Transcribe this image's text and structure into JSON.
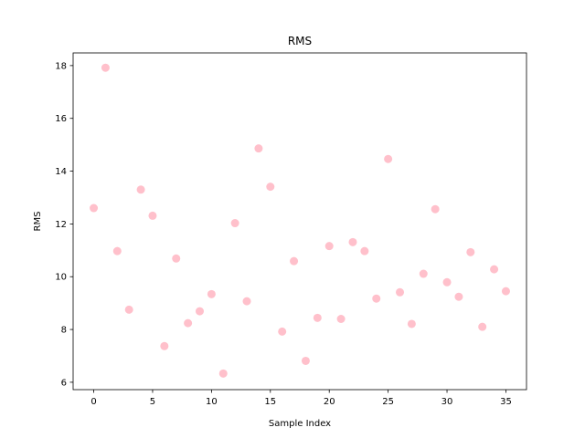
{
  "chart_data": {
    "type": "scatter",
    "title": "RMS",
    "xlabel": "Sample Index",
    "ylabel": "RMS",
    "xlim": [
      -1.75,
      36.75
    ],
    "ylim": [
      5.72,
      18.48
    ],
    "xticks": [
      0,
      5,
      10,
      15,
      20,
      25,
      30,
      35
    ],
    "yticks": [
      6,
      8,
      10,
      12,
      14,
      16,
      18
    ],
    "grid": false,
    "legend": "none",
    "marker_color": "#ffc0cb",
    "points": [
      [
        0,
        12.6
      ],
      [
        1,
        17.92
      ],
      [
        2,
        10.97
      ],
      [
        3,
        8.75
      ],
      [
        4,
        13.3
      ],
      [
        5,
        12.31
      ],
      [
        6,
        7.37
      ],
      [
        7,
        10.69
      ],
      [
        8,
        8.24
      ],
      [
        9,
        8.69
      ],
      [
        10,
        9.34
      ],
      [
        11,
        6.33
      ],
      [
        12,
        12.03
      ],
      [
        13,
        9.07
      ],
      [
        14,
        14.86
      ],
      [
        15,
        13.41
      ],
      [
        16,
        7.92
      ],
      [
        17,
        10.59
      ],
      [
        18,
        6.81
      ],
      [
        19,
        8.44
      ],
      [
        20,
        11.16
      ],
      [
        21,
        8.4
      ],
      [
        22,
        11.31
      ],
      [
        23,
        10.97
      ],
      [
        24,
        9.17
      ],
      [
        25,
        14.46
      ],
      [
        26,
        9.41
      ],
      [
        27,
        8.21
      ],
      [
        28,
        10.11
      ],
      [
        29,
        12.56
      ],
      [
        30,
        9.79
      ],
      [
        31,
        9.24
      ],
      [
        32,
        10.93
      ],
      [
        33,
        8.1
      ],
      [
        34,
        10.28
      ],
      [
        35,
        9.45
      ]
    ]
  }
}
